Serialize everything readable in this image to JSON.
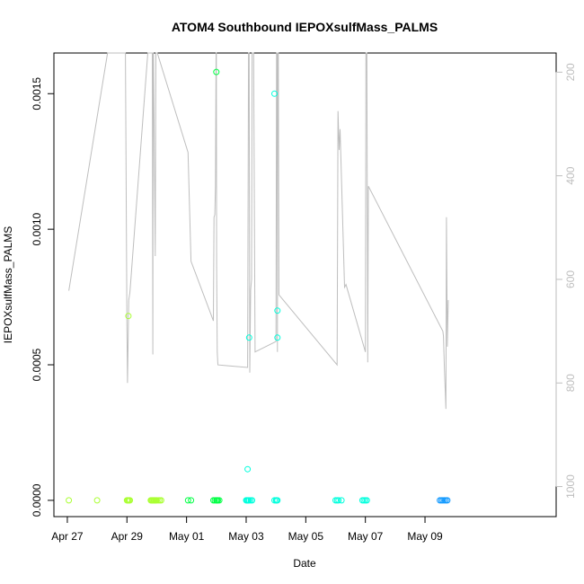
{
  "chart_data": {
    "type": "scatter",
    "title": "ATOM4 Southbound IEPOXsulfMass_PALMS",
    "xlabel": "Date",
    "ylabel": "IEPOXsulfMass_PALMS",
    "x_unit": "days from Apr 27",
    "xlim": [
      -0.45,
      16.4
    ],
    "ylim": [
      -6e-05,
      0.00165
    ],
    "x_ticks": [
      {
        "value": 0,
        "label": "Apr 27"
      },
      {
        "value": 2,
        "label": "Apr 29"
      },
      {
        "value": 4,
        "label": "May 01"
      },
      {
        "value": 6,
        "label": "May 03"
      },
      {
        "value": 8,
        "label": "May 05"
      },
      {
        "value": 10,
        "label": "May 07"
      },
      {
        "value": 12,
        "label": "May 09"
      }
    ],
    "y_ticks": [
      {
        "value": 0.0,
        "label": "0.0000"
      },
      {
        "value": 0.0005,
        "label": "0.0005"
      },
      {
        "value": 0.001,
        "label": "0.0010"
      },
      {
        "value": 0.0015,
        "label": "0.0015"
      }
    ],
    "secondary_axis": {
      "side": "right",
      "reversed": true,
      "ylim": [
        1058,
        163
      ],
      "ticks": [
        {
          "value": 200,
          "label": "200"
        },
        {
          "value": 400,
          "label": "400"
        },
        {
          "value": 600,
          "label": "600"
        },
        {
          "value": 800,
          "label": "800"
        },
        {
          "value": 1000,
          "label": "1000"
        }
      ],
      "line_color": "#bebebe",
      "line_x": [
        0.05,
        1.35,
        1.95,
        2.0,
        2.02,
        2.04,
        2.06,
        2.1,
        2.7,
        2.85,
        2.87,
        2.88,
        2.89,
        2.95,
        2.97,
        3.0,
        3.02,
        4.05,
        4.15,
        4.9,
        4.92,
        4.95,
        4.97,
        4.99,
        5.0,
        5.01,
        5.03,
        5.05,
        6.05,
        6.08,
        6.1,
        6.12,
        6.15,
        6.18,
        6.2,
        6.25,
        6.3,
        7.0,
        7.02,
        7.04,
        7.05,
        7.06,
        7.08,
        7.1,
        9.05,
        9.08,
        9.12,
        9.15,
        9.3,
        9.35,
        10.0,
        10.02,
        10.05,
        10.08,
        10.1,
        12.6,
        12.62,
        12.65,
        12.7,
        12.72,
        12.75,
        12.78
      ],
      "line_y": [
        622,
        163,
        163,
        695,
        800,
        720,
        640,
        625,
        163,
        163,
        745,
        163,
        163,
        555,
        163,
        163,
        163,
        355,
        565,
        680,
        480,
        475,
        420,
        163,
        163,
        570,
        740,
        765,
        770,
        163,
        163,
        780,
        620,
        600,
        163,
        163,
        740,
        720,
        163,
        163,
        740,
        163,
        163,
        630,
        765,
        275,
        350,
        310,
        615,
        610,
        740,
        163,
        163,
        760,
        420,
        700,
        710,
        770,
        850,
        480,
        730,
        640
      ]
    },
    "series": [
      {
        "x": [
          0.05,
          1.0,
          2.0,
          2.02,
          2.05,
          2.08,
          2.1,
          2.8,
          2.82,
          2.85,
          2.87,
          2.9,
          2.92,
          2.95,
          2.97,
          3.0,
          3.05,
          3.1,
          3.15,
          4.05,
          4.15,
          4.9,
          4.95,
          5.0,
          5.02,
          5.05,
          5.1,
          6.0,
          6.02,
          6.05,
          6.07,
          6.1,
          6.15,
          6.2,
          6.95,
          7.0,
          7.02,
          7.05,
          9.0,
          9.05,
          9.1,
          9.2,
          9.9,
          9.95,
          10.0,
          10.05,
          12.5,
          12.55,
          12.6,
          12.65,
          12.7,
          12.75,
          2.05,
          5.0,
          6.1,
          6.05,
          6.95,
          7.05,
          7.05
        ],
        "y": [
          0,
          0,
          0,
          0,
          0,
          0,
          0,
          0,
          0,
          0,
          0,
          0,
          0,
          0,
          0,
          0,
          0,
          0,
          0,
          0,
          0,
          0,
          0,
          0,
          0,
          0,
          0,
          0,
          0,
          0,
          0,
          0,
          0,
          0,
          0,
          0,
          0,
          0,
          0,
          0,
          0,
          0,
          0,
          0,
          0,
          0,
          0,
          0,
          0,
          0,
          0,
          0,
          0.00068,
          0.00158,
          0.0006,
          0.000115,
          0.0015,
          0.0006,
          0.0007
        ]
      }
    ],
    "point_color_by": "time",
    "point_colors": {
      "start": "#aaff33",
      "mid": "#00ff44",
      "late": "#00ffdd",
      "end": "#1199ff"
    },
    "grid": false,
    "legend": "none"
  }
}
